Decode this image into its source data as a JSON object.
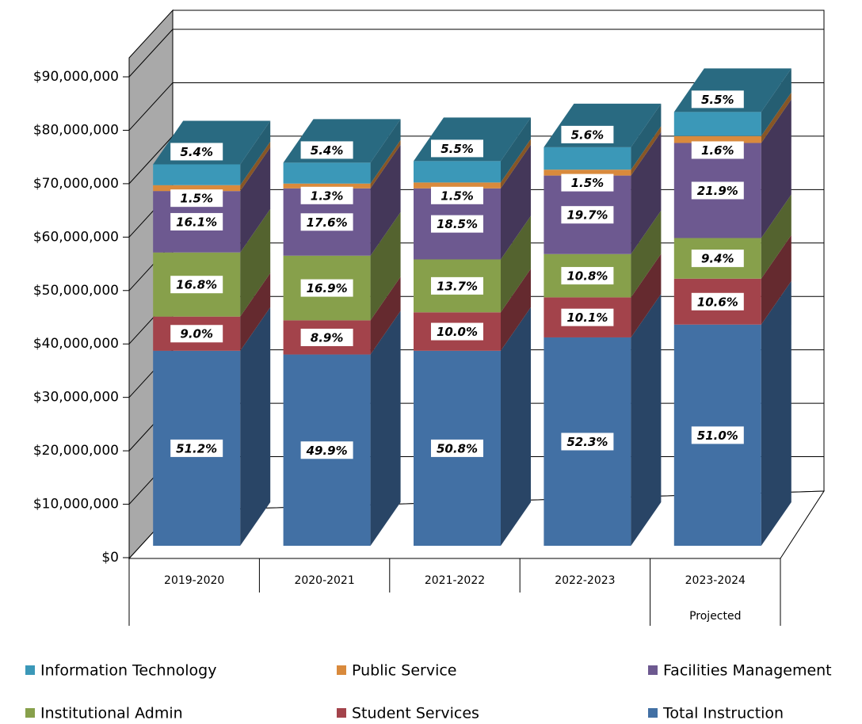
{
  "chart_data": {
    "type": "bar3d_stacked",
    "categories": [
      "2019-2020",
      "2020-2021",
      "2021-2022",
      "2022-2023",
      "2023-2024"
    ],
    "sublabels": [
      null,
      null,
      null,
      null,
      "Projected"
    ],
    "ylim": [
      0,
      90000000
    ],
    "yticks": [
      {
        "value": 0,
        "label": "$0"
      },
      {
        "value": 10000000,
        "label": "$10,000,000"
      },
      {
        "value": 20000000,
        "label": "$20,000,000"
      },
      {
        "value": 30000000,
        "label": "$30,000,000"
      },
      {
        "value": 40000000,
        "label": "$40,000,000"
      },
      {
        "value": 50000000,
        "label": "$50,000,000"
      },
      {
        "value": 60000000,
        "label": "$60,000,000"
      },
      {
        "value": 70000000,
        "label": "$70,000,000"
      },
      {
        "value": 80000000,
        "label": "$80,000,000"
      },
      {
        "value": 90000000,
        "label": "$90,000,000"
      }
    ],
    "grid": true,
    "series": [
      {
        "name": "Total Instruction",
        "color": "#4270a4",
        "values": [
          36500000,
          35800000,
          36500000,
          39000000,
          41400000
        ],
        "labels": [
          "51.2%",
          "49.9%",
          "50.8%",
          "52.3%",
          "51.0%"
        ]
      },
      {
        "name": "Student Services",
        "color": "#a3434b",
        "values": [
          6400000,
          6400000,
          7200000,
          7500000,
          8600000
        ],
        "labels": [
          "9.0%",
          "8.9%",
          "10.0%",
          "10.1%",
          "10.6%"
        ]
      },
      {
        "name": "Institutional Admin",
        "color": "#87a04b",
        "values": [
          12000000,
          12100000,
          9900000,
          8100000,
          7600000
        ],
        "labels": [
          "16.8%",
          "16.9%",
          "13.7%",
          "10.8%",
          "9.4%"
        ]
      },
      {
        "name": "Facilities Management",
        "color": "#6d5990",
        "values": [
          11500000,
          12600000,
          13300000,
          14700000,
          17800000
        ],
        "labels": [
          "16.1%",
          "17.6%",
          "18.5%",
          "19.7%",
          "21.9%"
        ]
      },
      {
        "name": "Public Service",
        "color": "#d98a3c",
        "values": [
          1100000,
          900000,
          1100000,
          1100000,
          1300000
        ],
        "labels": [
          "1.5%",
          "1.3%",
          "1.5%",
          "1.5%",
          "1.6%"
        ]
      },
      {
        "name": "Information Technology",
        "color": "#3b98b8",
        "values": [
          3900000,
          3900000,
          4000000,
          4200000,
          4500000
        ],
        "labels": [
          "5.4%",
          "5.4%",
          "5.5%",
          "5.6%",
          "5.5%"
        ]
      }
    ]
  }
}
